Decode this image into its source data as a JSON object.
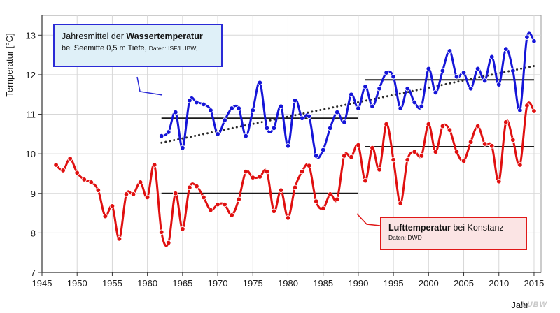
{
  "chart_data": {
    "type": "line",
    "ylabel": "Temperatur [°C]",
    "xlabel": "Jahr",
    "xlim": [
      1945,
      2016
    ],
    "ylim": [
      7,
      13.5
    ],
    "xticks": [
      "1945",
      "1950",
      "1955",
      "1960",
      "1965",
      "1970",
      "1975",
      "1980",
      "1985",
      "1990",
      "1995",
      "2000",
      "2005",
      "2010",
      "2015"
    ],
    "yticks": [
      "7",
      "8",
      "9",
      "10",
      "11",
      "12",
      "13"
    ],
    "grid": true,
    "series": [
      {
        "name": "Wassertemperatur",
        "color": "#1515d8",
        "x": [
          1962,
          1963,
          1964,
          1965,
          1966,
          1967,
          1968,
          1969,
          1970,
          1971,
          1972,
          1973,
          1974,
          1975,
          1976,
          1977,
          1978,
          1979,
          1980,
          1981,
          1982,
          1983,
          1984,
          1985,
          1986,
          1987,
          1988,
          1989,
          1990,
          1991,
          1992,
          1993,
          1994,
          1995,
          1996,
          1997,
          1998,
          1999,
          2000,
          2001,
          2002,
          2003,
          2004,
          2005,
          2006,
          2007,
          2008,
          2009,
          2010,
          2011,
          2012,
          2013,
          2014,
          2015
        ],
        "y": [
          10.45,
          10.55,
          11.05,
          10.15,
          11.35,
          11.3,
          11.25,
          11.1,
          10.5,
          10.85,
          11.15,
          11.15,
          10.45,
          11.1,
          11.8,
          10.65,
          10.65,
          11.2,
          10.2,
          11.35,
          10.9,
          10.95,
          9.95,
          10.1,
          10.65,
          11.05,
          10.8,
          11.5,
          11.15,
          11.7,
          11.2,
          11.65,
          12.05,
          11.95,
          11.15,
          11.65,
          11.3,
          11.2,
          12.15,
          11.55,
          12.1,
          12.6,
          11.95,
          12.05,
          11.65,
          12.15,
          11.85,
          12.45,
          11.75,
          12.65,
          12.1,
          11.1,
          12.95,
          12.85
        ]
      },
      {
        "name": "Lufttemperatur",
        "color": "#e01010",
        "x": [
          1947,
          1948,
          1949,
          1950,
          1951,
          1952,
          1953,
          1954,
          1955,
          1956,
          1957,
          1958,
          1959,
          1960,
          1961,
          1962,
          1963,
          1964,
          1965,
          1966,
          1967,
          1968,
          1969,
          1970,
          1971,
          1972,
          1973,
          1974,
          1975,
          1976,
          1977,
          1978,
          1979,
          1980,
          1981,
          1982,
          1983,
          1984,
          1985,
          1986,
          1987,
          1988,
          1989,
          1990,
          1991,
          1992,
          1993,
          1994,
          1995,
          1996,
          1997,
          1998,
          1999,
          2000,
          2001,
          2002,
          2003,
          2004,
          2005,
          2006,
          2007,
          2008,
          2009,
          2010,
          2011,
          2012,
          2013,
          2014,
          2015
        ],
        "y": [
          9.72,
          9.58,
          9.88,
          9.52,
          9.35,
          9.28,
          9.08,
          8.42,
          8.68,
          7.85,
          8.98,
          8.98,
          9.28,
          8.9,
          9.72,
          8.02,
          7.75,
          9.0,
          8.1,
          9.15,
          9.18,
          8.9,
          8.58,
          8.72,
          8.72,
          8.45,
          8.85,
          9.55,
          9.4,
          9.42,
          9.55,
          8.55,
          9.08,
          8.38,
          9.15,
          9.55,
          9.7,
          8.8,
          8.62,
          8.98,
          8.85,
          9.95,
          9.92,
          10.22,
          9.32,
          10.15,
          9.6,
          10.75,
          9.85,
          8.75,
          9.85,
          10.05,
          9.95,
          10.75,
          10.05,
          10.7,
          10.6,
          10.05,
          9.82,
          10.3,
          10.7,
          10.25,
          10.2,
          9.3,
          10.8,
          10.35,
          9.72,
          11.22,
          11.08
        ]
      }
    ],
    "period_means": [
      {
        "series": "Wassertemperatur",
        "from": 1962,
        "to": 1990,
        "value": 10.9
      },
      {
        "series": "Wassertemperatur",
        "from": 1991,
        "to": 2015,
        "value": 11.87
      },
      {
        "series": "Lufttemperatur",
        "from": 1962,
        "to": 1990,
        "value": 9.0
      },
      {
        "series": "Lufttemperatur",
        "from": 1991,
        "to": 2015,
        "value": 10.18
      }
    ],
    "trend": {
      "series": "Wassertemperatur",
      "x": [
        1962,
        2015
      ],
      "y": [
        10.28,
        12.22
      ],
      "style": "dotted"
    }
  },
  "legend_water": {
    "title_prefix": "Jahresmittel der ",
    "title_bold": "Wassertemperatur",
    "subtitle": "bei Seemitte 0,5 m Tiefe, ",
    "source": "Daten: ISF/LUBW,"
  },
  "legend_air": {
    "title_bold": "Lufttemperatur",
    "title_suffix": " bei Konstanz",
    "source": "Daten: DWD"
  },
  "watermark": "LUBW"
}
